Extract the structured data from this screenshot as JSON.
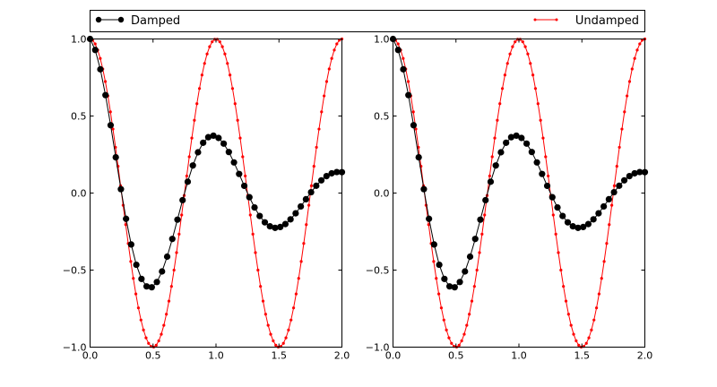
{
  "colors": {
    "damped": "#000000",
    "undamped": "#ff0000",
    "axes": "#000000",
    "background": "#ffffff"
  },
  "legend": {
    "entries": [
      {
        "label": "Damped",
        "color": "#000000",
        "marker": "circle-large",
        "position": "left"
      },
      {
        "label": "Undamped",
        "color": "#ff0000",
        "marker": "dot-small",
        "position": "right"
      }
    ]
  },
  "chart_data": [
    {
      "type": "line",
      "title": "",
      "xlabel": "",
      "ylabel": "",
      "xlim": [
        0.0,
        2.0
      ],
      "ylim": [
        -1.0,
        1.0
      ],
      "xticks": [
        "0.0",
        "0.5",
        "1.0",
        "1.5",
        "2.0"
      ],
      "yticks": [
        "−1.0",
        "−0.5",
        "0.0",
        "0.5",
        "1.0"
      ],
      "grid": false,
      "legend_position": "top, spanning both plots",
      "series": [
        {
          "name": "Damped",
          "formula": "exp(-t)*cos(2*pi*t)",
          "n_points": 50,
          "color": "#000000",
          "marker": "o",
          "sample": {
            "x": [
              0.0,
              0.25,
              0.5,
              0.75,
              1.0,
              1.25,
              1.5,
              1.75,
              2.0
            ],
            "y": [
              1.0,
              0.0,
              -0.61,
              0.0,
              0.37,
              0.0,
              -0.22,
              0.0,
              0.14
            ]
          }
        },
        {
          "name": "Undamped",
          "formula": "cos(2*pi*t)",
          "n_points": 100,
          "color": "#ff0000",
          "marker": ".",
          "sample": {
            "x": [
              0.0,
              0.25,
              0.5,
              0.75,
              1.0,
              1.25,
              1.5,
              1.75,
              2.0
            ],
            "y": [
              1.0,
              0.0,
              -1.0,
              0.0,
              1.0,
              0.0,
              -1.0,
              0.0,
              1.0
            ]
          }
        }
      ]
    },
    {
      "type": "line",
      "title": "",
      "xlabel": "",
      "ylabel": "",
      "xlim": [
        0.0,
        2.0
      ],
      "ylim": [
        -1.0,
        1.0
      ],
      "xticks": [
        "0.0",
        "0.5",
        "1.0",
        "1.5",
        "2.0"
      ],
      "yticks": [
        "−1.0",
        "−0.5",
        "0.0",
        "0.5",
        "1.0"
      ],
      "grid": false,
      "series": [
        {
          "name": "Damped",
          "formula": "exp(-t)*cos(2*pi*t)",
          "n_points": 50,
          "color": "#000000",
          "marker": "o"
        },
        {
          "name": "Undamped",
          "formula": "cos(2*pi*t)",
          "n_points": 100,
          "color": "#ff0000",
          "marker": "."
        }
      ]
    }
  ]
}
